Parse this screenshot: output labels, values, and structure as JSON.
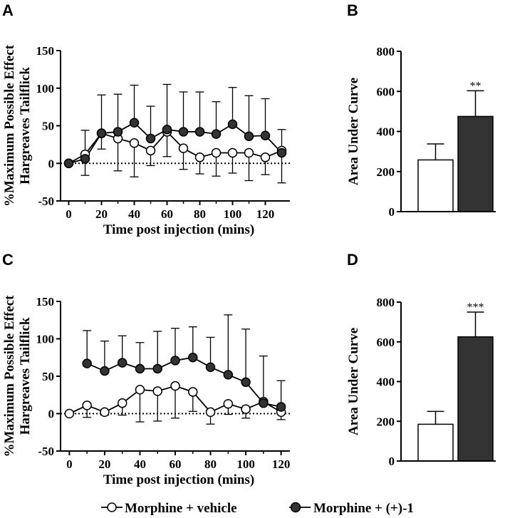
{
  "colors": {
    "axis": "#000000",
    "filled": "#333333",
    "open": "#ffffff"
  },
  "legend": {
    "vehicle_label": "Morphine + vehicle",
    "treatment_label": "Morphine + (+)-1"
  },
  "chart_data": [
    {
      "panel": "A",
      "type": "line",
      "ylabel_line1": "%Maximum Possible Effect",
      "ylabel_line2": "Hargreaves Tailflick",
      "xlabel": "Time post injection (mins)",
      "xlim": [
        -5,
        135
      ],
      "ylim": [
        -50,
        150
      ],
      "xticks": [
        0,
        20,
        40,
        60,
        80,
        100,
        120
      ],
      "yticks": [
        -50,
        0,
        50,
        100,
        150
      ],
      "reference_line_y": 0,
      "series": [
        {
          "name": "Morphine + vehicle",
          "marker": "open",
          "x": [
            0,
            10,
            20,
            30,
            40,
            50,
            60,
            70,
            80,
            90,
            100,
            110,
            120,
            130
          ],
          "y": [
            0,
            12,
            40,
            33,
            27,
            17,
            42,
            20,
            8,
            14,
            14,
            14,
            8,
            17
          ],
          "err": [
            0,
            0,
            0,
            0,
            0,
            0,
            0,
            0,
            0,
            0,
            0,
            0,
            0,
            0
          ],
          "err_lower": [
            0,
            28,
            21,
            43,
            45,
            20,
            33,
            28,
            22,
            31,
            27,
            37,
            23,
            43
          ]
        },
        {
          "name": "Morphine + (+)-1",
          "marker": "filled",
          "x": [
            0,
            10,
            20,
            30,
            40,
            50,
            60,
            70,
            80,
            90,
            100,
            110,
            120,
            130
          ],
          "y": [
            0,
            6,
            40,
            42,
            54,
            33,
            45,
            42,
            42,
            39,
            52,
            36,
            37,
            14
          ],
          "err_upper": [
            0,
            38,
            51,
            50,
            50,
            43,
            60,
            53,
            53,
            43,
            49,
            54,
            49,
            31
          ]
        }
      ]
    },
    {
      "panel": "B",
      "type": "bar",
      "ylabel": "Area Under Curve",
      "categories": [
        "Morphine + vehicle",
        "Morphine + (+)-1"
      ],
      "values": [
        258,
        475
      ],
      "errors": [
        80,
        128
      ],
      "ylim": [
        0,
        800
      ],
      "yticks": [
        0,
        200,
        400,
        600,
        800
      ],
      "annotation": "**"
    },
    {
      "panel": "C",
      "type": "line",
      "ylabel_line1": "%Maximum Possible Effect",
      "ylabel_line2": "Hargreaves Tailflick",
      "xlabel": "Time post injection (mins)",
      "xlim": [
        -5,
        125
      ],
      "ylim": [
        -50,
        150
      ],
      "xticks": [
        0,
        20,
        40,
        60,
        80,
        100,
        120
      ],
      "yticks": [
        -50,
        0,
        50,
        100,
        150
      ],
      "reference_line_y": 0,
      "series": [
        {
          "name": "Morphine + vehicle",
          "marker": "open",
          "x": [
            0,
            10,
            20,
            30,
            40,
            50,
            60,
            70,
            80,
            90,
            100,
            110,
            120
          ],
          "y": [
            0,
            11,
            2,
            14,
            32,
            30,
            37,
            29,
            2,
            13,
            6,
            16,
            2
          ],
          "err_lower": [
            0,
            16,
            4,
            16,
            43,
            40,
            43,
            26,
            16,
            14,
            12,
            0,
            10
          ]
        },
        {
          "name": "Morphine + (+)-1",
          "marker": "filled",
          "x": [
            10,
            20,
            30,
            40,
            50,
            60,
            70,
            80,
            90,
            100,
            110,
            120
          ],
          "y": [
            67,
            57,
            68,
            60,
            60,
            71,
            75,
            62,
            52,
            42,
            14,
            9
          ],
          "err_upper": [
            44,
            40,
            36,
            35,
            50,
            43,
            41,
            40,
            80,
            71,
            63,
            35
          ]
        }
      ]
    },
    {
      "panel": "D",
      "type": "bar",
      "ylabel": "Area Under Curve",
      "categories": [
        "Morphine + vehicle",
        "Morphine + (+)-1"
      ],
      "values": [
        185,
        625
      ],
      "errors": [
        65,
        125
      ],
      "ylim": [
        0,
        800
      ],
      "yticks": [
        0,
        200,
        400,
        600,
        800
      ],
      "annotation": "***"
    }
  ]
}
